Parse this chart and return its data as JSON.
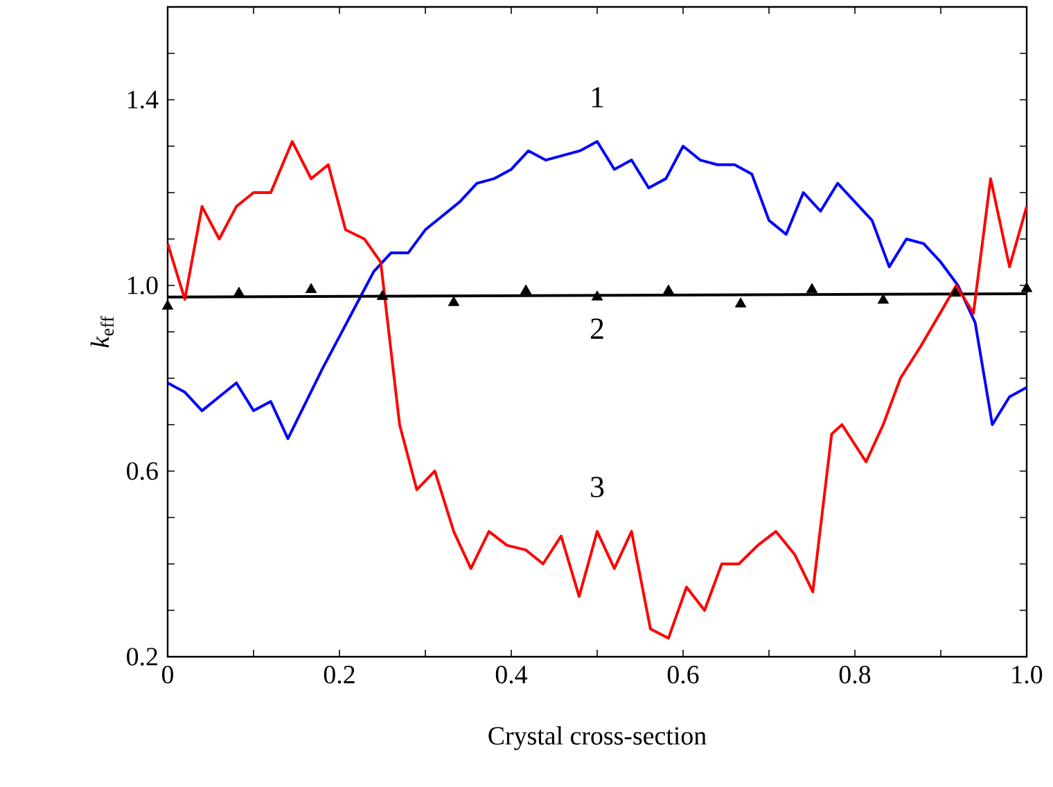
{
  "chart_data": {
    "type": "line",
    "xlabel": "Crystal cross-section",
    "ylabel": "*k*$_{eff}$",
    "xlim": [
      0,
      1
    ],
    "ylim": [
      0.2,
      1.6
    ],
    "xticks": [
      0,
      {
        "value": 0.1,
        "label": null
      },
      0.2,
      {
        "value": 0.3,
        "label": null
      },
      0.4,
      {
        "value": 0.5,
        "label": null
      },
      0.6,
      {
        "value": 0.7,
        "label": null
      },
      0.8,
      {
        "value": 0.9,
        "label": null
      },
      {
        "value": 1,
        "label": "1.0"
      }
    ],
    "yticks": [
      0.2,
      {
        "value": 0.3,
        "label": null
      },
      {
        "value": 0.4,
        "label": null
      },
      {
        "value": 0.5,
        "label": null
      },
      0.6,
      {
        "value": 0.7,
        "label": null
      },
      {
        "value": 0.8,
        "label": null
      },
      {
        "value": 0.9,
        "label": null
      },
      {
        "value": 1,
        "label": "1.0"
      },
      {
        "value": 1.1,
        "label": null
      },
      {
        "value": 1.2,
        "label": null
      },
      {
        "value": 1.3,
        "label": null
      },
      1.4,
      {
        "value": 1.5,
        "label": null
      },
      {
        "value": 1.6,
        "label": null
      }
    ],
    "series": [
      {
        "name": "1",
        "color": "#0000ff",
        "x": [
          0,
          0.02,
          0.04,
          0.06,
          0.08,
          0.1,
          0.12,
          0.14,
          0.18,
          0.2,
          0.22,
          0.24,
          0.26,
          0.28,
          0.3,
          0.32,
          0.34,
          0.36,
          0.38,
          0.4,
          0.42,
          0.44,
          0.46,
          0.48,
          0.5,
          0.52,
          0.54,
          0.56,
          0.58,
          0.6,
          0.62,
          0.64,
          0.66,
          0.68,
          0.7,
          0.72,
          0.74,
          0.76,
          0.78,
          0.8,
          0.82,
          0.84,
          0.86,
          0.88,
          0.9,
          0.92,
          0.94,
          0.96,
          0.98,
          1.0
        ],
        "values": [
          0.79,
          0.77,
          0.73,
          0.76,
          0.79,
          0.73,
          0.75,
          0.67,
          0.82,
          0.89,
          0.96,
          1.03,
          1.07,
          1.07,
          1.12,
          1.15,
          1.18,
          1.22,
          1.23,
          1.25,
          1.29,
          1.27,
          1.28,
          1.29,
          1.31,
          1.25,
          1.27,
          1.21,
          1.23,
          1.3,
          1.27,
          1.26,
          1.26,
          1.24,
          1.14,
          1.11,
          1.2,
          1.16,
          1.22,
          1.18,
          1.14,
          1.04,
          1.1,
          1.09,
          1.05,
          1.0,
          0.92,
          0.7,
          0.76,
          0.78
        ]
      },
      {
        "name": "2",
        "color": "#000000",
        "x": [
          0,
          1
        ],
        "values": [
          0.975,
          0.982
        ]
      },
      {
        "type": "scatter",
        "color": "#000000",
        "marker": "triangle",
        "x": [
          0,
          0.083,
          0.167,
          0.25,
          0.333,
          0.417,
          0.5,
          0.583,
          0.667,
          0.75,
          0.833,
          0.917,
          1.0
        ],
        "values": [
          0.955,
          0.983,
          0.991,
          0.976,
          0.963,
          0.988,
          0.975,
          0.988,
          0.96,
          0.991,
          0.968,
          0.983,
          0.993
        ]
      },
      {
        "name": "3",
        "color": "#ff0000",
        "x": [
          0,
          0.02,
          0.04,
          0.06,
          0.08,
          0.1,
          0.12,
          0.145,
          0.167,
          0.187,
          0.207,
          0.229,
          0.248,
          0.27,
          0.29,
          0.311,
          0.333,
          0.353,
          0.374,
          0.395,
          0.417,
          0.437,
          0.458,
          0.479,
          0.5,
          0.52,
          0.54,
          0.562,
          0.583,
          0.604,
          0.625,
          0.645,
          0.665,
          0.687,
          0.708,
          0.73,
          0.751,
          0.773,
          0.785,
          0.813,
          0.833,
          0.853,
          0.877,
          0.896,
          0.918,
          0.938,
          0.958,
          0.98,
          1.0
        ],
        "values": [
          1.09,
          0.97,
          1.17,
          1.1,
          1.17,
          1.2,
          1.2,
          1.31,
          1.23,
          1.26,
          1.12,
          1.1,
          1.05,
          0.7,
          0.56,
          0.6,
          0.47,
          0.39,
          0.47,
          0.44,
          0.43,
          0.4,
          0.46,
          0.33,
          0.47,
          0.39,
          0.47,
          0.26,
          0.24,
          0.35,
          0.3,
          0.4,
          0.4,
          0.44,
          0.47,
          0.42,
          0.34,
          0.68,
          0.7,
          0.62,
          0.7,
          0.8,
          0.87,
          0.93,
          1.0,
          0.94,
          1.23,
          1.04,
          1.17
        ]
      }
    ]
  }
}
